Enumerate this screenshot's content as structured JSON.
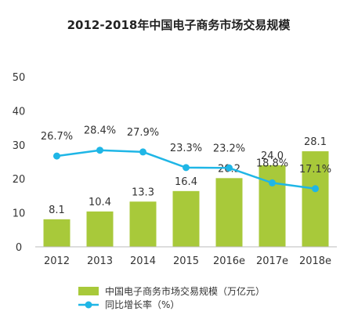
{
  "chart_data": {
    "type": "bar",
    "title": "2012-2018年中国电子商务市场交易规模",
    "categories": [
      "2012",
      "2013",
      "2014",
      "2015",
      "2016e",
      "2017e",
      "2018e"
    ],
    "series": [
      {
        "name": "中国电子商务市场交易规模（万亿元）",
        "kind": "bar",
        "color": "#a8c93a",
        "values": [
          8.1,
          10.4,
          13.3,
          16.4,
          20.2,
          24.0,
          28.1
        ],
        "labels": [
          "8.1",
          "10.4",
          "13.3",
          "16.4",
          "20.2",
          "24.0",
          "28.1"
        ]
      },
      {
        "name": "同比增长率（%）",
        "kind": "line",
        "color": "#1fb6e6",
        "values": [
          26.7,
          28.4,
          27.9,
          23.3,
          23.2,
          18.8,
          17.1
        ],
        "labels": [
          "26.7%",
          "28.4%",
          "27.9%",
          "23.3%",
          "23.2%",
          "18.8%",
          "17.1%"
        ]
      }
    ],
    "ylim": [
      0,
      50
    ],
    "yticks": [
      "0",
      "10",
      "20",
      "30",
      "40",
      "50"
    ],
    "grid": false,
    "legend": "bottom-left"
  }
}
